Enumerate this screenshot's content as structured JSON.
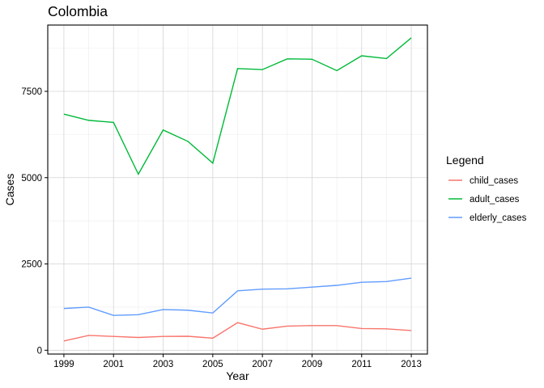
{
  "chart_data": {
    "type": "line",
    "title": "Colombia",
    "xlabel": "Year",
    "ylabel": "Cases",
    "x": [
      1999,
      2000,
      2001,
      2002,
      2003,
      2004,
      2005,
      2006,
      2007,
      2008,
      2009,
      2010,
      2011,
      2012,
      2013
    ],
    "x_ticks": [
      1999,
      2001,
      2003,
      2005,
      2007,
      2009,
      2011,
      2013
    ],
    "x_tick_labels": [
      "1999",
      "2001",
      "2003",
      "2005",
      "2007",
      "2009",
      "2011",
      "2013"
    ],
    "y_ticks": [
      0,
      2500,
      5000,
      7500
    ],
    "y_tick_labels": [
      "0",
      "2500",
      "5000",
      "7500"
    ],
    "xlim": [
      1998.35,
      2013.65
    ],
    "ylim": [
      -110,
      9420
    ],
    "grid": true,
    "legend": {
      "title": "Legend",
      "position": "right"
    },
    "series": [
      {
        "name": "child_cases",
        "color": "#F8766D",
        "values": [
          270,
          430,
          400,
          370,
          400,
          405,
          350,
          800,
          610,
          700,
          715,
          715,
          630,
          620,
          570
        ]
      },
      {
        "name": "adult_cases",
        "color": "#00BA38",
        "values": [
          6840,
          6660,
          6600,
          5100,
          6380,
          6050,
          5420,
          8160,
          8130,
          8440,
          8430,
          8100,
          8530,
          8450,
          9050
        ]
      },
      {
        "name": "elderly_cases",
        "color": "#619CFF",
        "values": [
          1210,
          1250,
          1010,
          1030,
          1180,
          1160,
          1080,
          1720,
          1770,
          1780,
          1830,
          1880,
          1970,
          1990,
          2090
        ]
      }
    ]
  }
}
